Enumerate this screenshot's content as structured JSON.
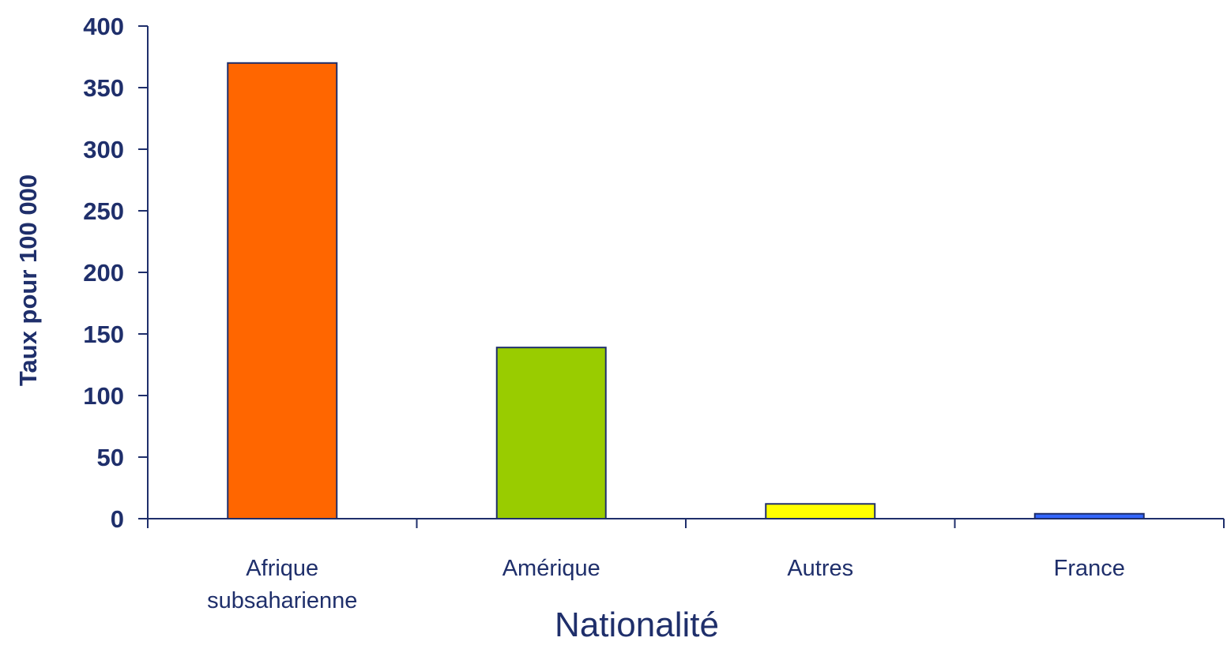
{
  "chart_data": {
    "type": "bar",
    "title": "",
    "xlabel": "Nationalité",
    "ylabel": "Taux pour 100 000",
    "categories": [
      [
        "Afrique",
        "subsaharienne"
      ],
      [
        "Amérique"
      ],
      [
        "Autres"
      ],
      [
        "France"
      ]
    ],
    "values": [
      370,
      139,
      12,
      4
    ],
    "colors": [
      "#FF6600",
      "#99CC00",
      "#FFFF00",
      "#3366FF"
    ],
    "ylim": [
      0,
      400
    ],
    "yticks": [
      0,
      50,
      100,
      150,
      200,
      250,
      300,
      350,
      400
    ],
    "grid": false,
    "legend": "none",
    "text_color": "#1F2F6B",
    "axis_color": "#1F2F6B",
    "bar_border_color": "#1F2F6B"
  }
}
